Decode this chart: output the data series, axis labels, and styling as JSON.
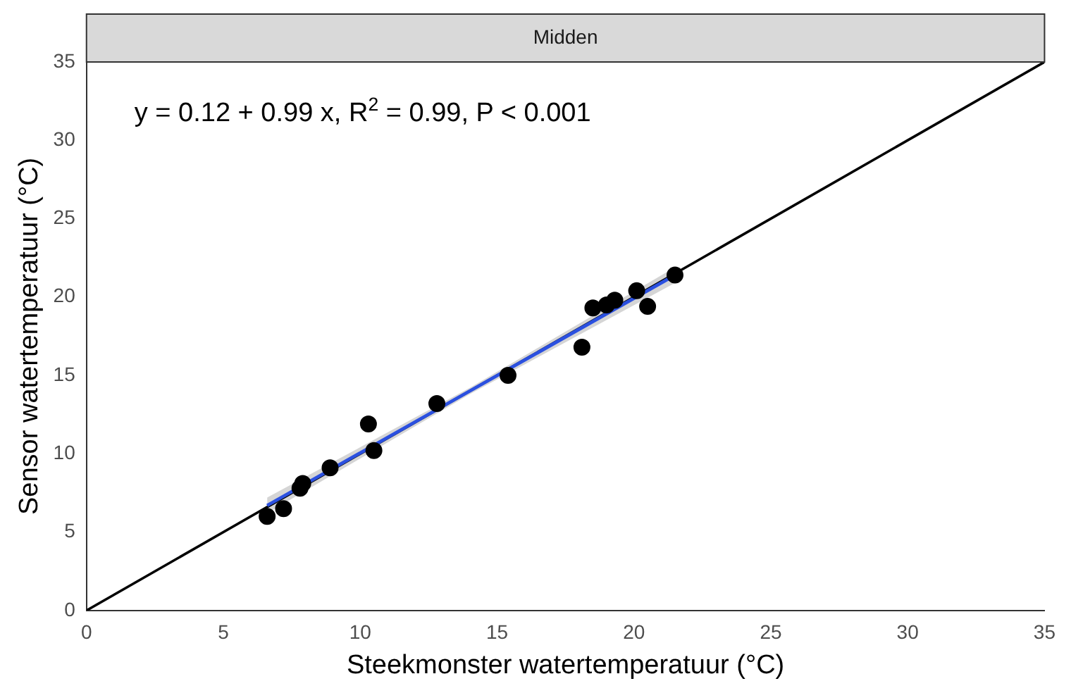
{
  "chart_data": {
    "type": "scatter",
    "title": "Midden",
    "xlabel": "Steekmonster watertemperatuur (°C)",
    "ylabel": "Sensor watertemperatuur (°C)",
    "annotations": [
      "y = 0.12 + 0.99 x, R$^{2}$ = 0.99, P < 0.001"
    ],
    "xlim": [
      0,
      35
    ],
    "ylim": [
      0,
      35
    ],
    "xticks": [
      0,
      5,
      10,
      15,
      20,
      25,
      30,
      35
    ],
    "yticks": [
      0,
      5,
      10,
      15,
      20,
      25,
      30,
      35
    ],
    "grid": false,
    "legend": false,
    "series": [
      {
        "type": "scatter",
        "marker": "circle",
        "color": "#000000",
        "x": [
          6.6,
          7.2,
          7.8,
          7.9,
          8.9,
          10.3,
          10.5,
          12.8,
          15.4,
          18.1,
          18.5,
          19.0,
          19.3,
          20.1,
          20.5,
          21.5
        ],
        "values": [
          6.0,
          6.5,
          7.8,
          8.1,
          9.1,
          11.9,
          10.2,
          13.2,
          15.0,
          16.8,
          19.3,
          19.5,
          19.8,
          20.4,
          19.4,
          21.4
        ]
      },
      {
        "type": "line",
        "marker": "none",
        "color": "#000000",
        "x": [
          0,
          35
        ],
        "values": [
          0,
          35
        ]
      },
      {
        "type": "line",
        "marker": "none",
        "color": "#2b50e0",
        "x": [
          6.6,
          14,
          21.5
        ],
        "values": [
          6.7,
          14.0,
          21.4
        ],
        "lower": [
          6.2,
          13.8,
          20.9
        ],
        "upper": [
          7.2,
          14.2,
          21.9
        ]
      }
    ]
  }
}
